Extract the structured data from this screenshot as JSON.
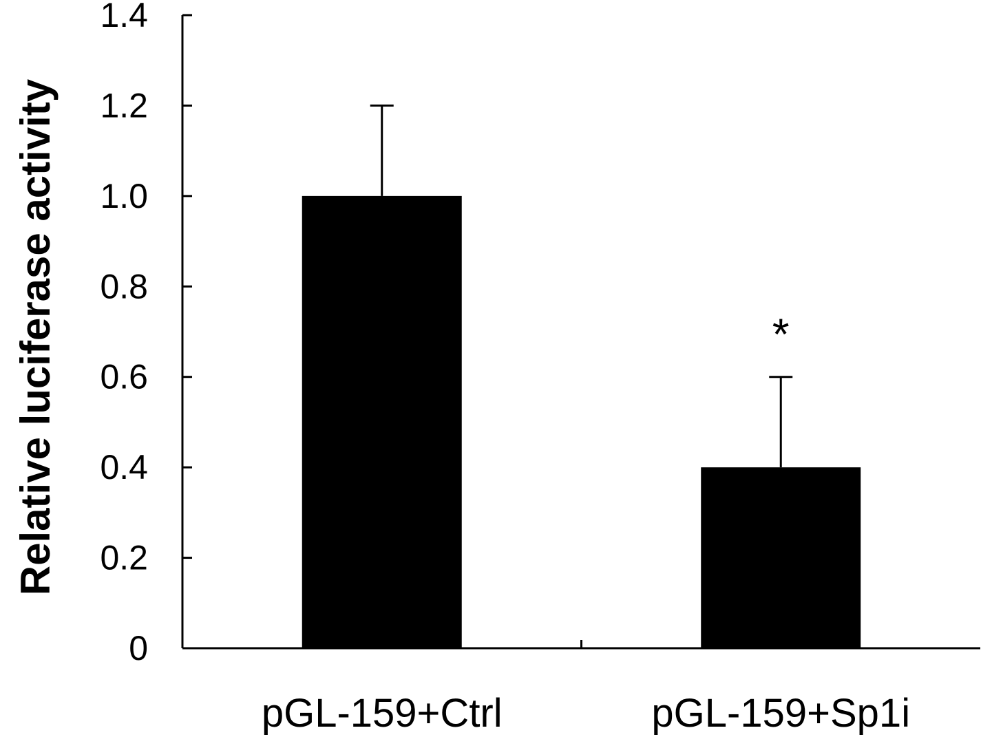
{
  "chart_data": {
    "type": "bar",
    "title": "",
    "xlabel": "",
    "ylabel": "Relative luciferase activity",
    "categories": [
      "pGL-159+Ctrl",
      "pGL-159+Sp1i"
    ],
    "series": [
      {
        "values": [
          1.0,
          0.4
        ],
        "error": [
          0.2,
          0.2
        ],
        "color": "#000000"
      }
    ],
    "ylim": [
      0,
      1.4
    ],
    "yticks": [
      0,
      0.2,
      0.4,
      0.6,
      0.8,
      1.0,
      1.2,
      1.4
    ],
    "ytick_labels": [
      "0",
      "0.2",
      "0.4",
      "0.6",
      "0.8",
      "1.0",
      "1.2",
      "1.4"
    ],
    "annotations": [
      {
        "category_index": 1,
        "text": "*"
      }
    ],
    "grid": false,
    "legend": "none"
  }
}
